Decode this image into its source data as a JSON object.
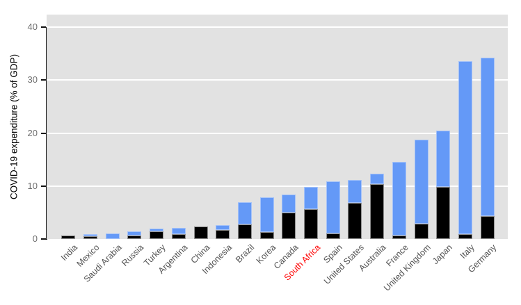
{
  "chart_data": {
    "type": "bar",
    "stacked": true,
    "title": "",
    "ylabel": "COVID-19 expenditure (% of GDP)",
    "xlabel": "",
    "ylim": [
      0,
      40
    ],
    "y_ticks": [
      0,
      10,
      20,
      30,
      40
    ],
    "grid": "major-horizontal-white-on-gray",
    "legend": "none",
    "categories": [
      "India",
      "Mexico",
      "Saudi Arabia",
      "Russia",
      "Turkey",
      "Argentina",
      "China",
      "Indonesia",
      "Brazil",
      "Korea",
      "Canada",
      "South Africa",
      "Spain",
      "United States",
      "Australia",
      "France",
      "United Kingdom",
      "Japan",
      "Italy",
      "Germany"
    ],
    "series": [
      {
        "name": "black",
        "values": [
          0.6,
          0.5,
          0.0,
          0.7,
          1.4,
          0.9,
          2.4,
          1.7,
          2.7,
          1.3,
          5.0,
          5.7,
          1.0,
          6.8,
          10.4,
          0.6,
          2.9,
          9.8,
          0.9,
          4.3
        ]
      },
      {
        "name": "blue",
        "values": [
          0.0,
          0.4,
          1.0,
          0.8,
          0.6,
          1.2,
          0.0,
          0.9,
          4.2,
          6.6,
          3.4,
          4.2,
          9.9,
          4.4,
          1.9,
          13.9,
          15.8,
          10.6,
          32.7,
          29.9
        ]
      }
    ],
    "totals": [
      0.6,
      0.9,
      1.0,
      1.5,
      2.0,
      2.1,
      2.4,
      2.6,
      6.9,
      7.9,
      8.4,
      9.9,
      10.9,
      11.2,
      12.3,
      14.5,
      18.7,
      20.4,
      33.6,
      34.2
    ],
    "highlight": {
      "category": "South Africa",
      "reason": "red axis label"
    }
  },
  "colors": {
    "series_black": "#000000",
    "series_blue": "#6499F7",
    "black_border": "#8f8f8f",
    "blue_border": "#a6c3f8",
    "panel_bg": "#E2E2E2",
    "gridline": "#FFFFFF",
    "axis_line": "#111111",
    "y_tick_label": "#6e6e6e",
    "x_tick_label": "#545454",
    "highlight_label": "#FF0000"
  }
}
